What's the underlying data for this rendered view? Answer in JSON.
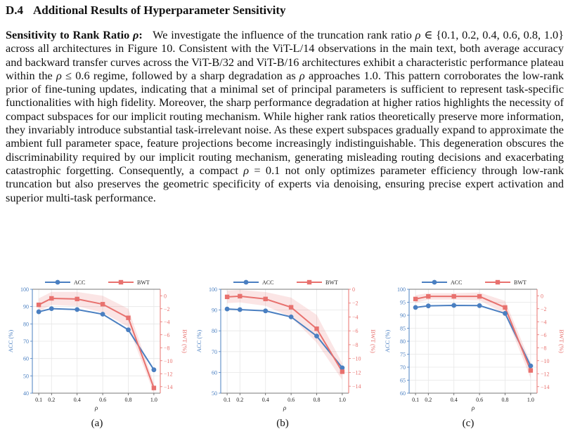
{
  "section": {
    "number": "D.4",
    "title": "Additional Results of Hyperparameter Sensitivity"
  },
  "paragraph": {
    "lead": "Sensitivity to Rank Ratio",
    "lead_symbol": "ρ",
    "t1": "We investigate the influence of the truncation rank ratio ",
    "rho": "ρ",
    "t2": " ∈ {0.1, 0.2, 0.4, 0.6, 0.8, 1.0} across all architectures in Figure 10. Consistent with the ViT-L/14 observations in the main text, both average accuracy and backward transfer curves across the ViT-B/32 and ViT-B/16 architectures exhibit a characteristic performance plateau within the ",
    "t3": " ≤ 0.6 regime, followed by a sharp degradation as ",
    "t4": " approaches 1.0. This pattern corroborates the low-rank prior of fine-tuning updates, indicating that a minimal set of principal parameters is sufficient to represent task-specific functionalities with high fidelity. Moreover, the sharp performance degradation at higher ratios highlights the necessity of compact subspaces for our implicit routing mechanism. While higher rank ratios theoretically preserve more information, they invariably introduce substantial task-irrelevant noise. As these expert subspaces gradually expand to approximate the ambient full parameter space, feature projections become increasingly indistinguishable. This degeneration obscures the discriminability required by our implicit routing mechanism, generating misleading routing decisions and exacerbating catastrophic forgetting. Consequently, a compact ",
    "t5": " = 0.1 not only optimizes parameter efficiency through low-rank truncation but also preserves the geometric specificity of experts via denoising, ensuring precise expert activation and superior multi-task performance."
  },
  "chart_data": [
    {
      "type": "line",
      "caption": "(a)",
      "x": [
        0.1,
        0.2,
        0.4,
        0.6,
        0.8,
        1.0
      ],
      "xlabel": "ρ",
      "ylabel_left": "ACC (%)",
      "ylabel_right": "BWT (%)",
      "ylim_left": [
        40,
        100
      ],
      "ylim_right": [
        -15,
        1
      ],
      "yticks_left": [
        40,
        50,
        60,
        70,
        80,
        90,
        100
      ],
      "yticks_right": [
        0,
        -2,
        -4,
        -6,
        -8,
        -10,
        -12,
        -14
      ],
      "xticks": [
        "0.1",
        "0.2",
        "0.4",
        "0.6",
        "0.8",
        "1.0"
      ],
      "grid": true,
      "legend_position": "top",
      "series": [
        {
          "name": "ACC",
          "axis": "left",
          "color": "#4a7fc1",
          "marker": "circle",
          "values": [
            87.0,
            88.8,
            88.3,
            85.6,
            76.6,
            53.5
          ]
        },
        {
          "name": "BWT",
          "axis": "right",
          "color": "#e8716e",
          "marker": "square",
          "values": [
            -1.4,
            -0.4,
            -0.5,
            -1.3,
            -3.4,
            -14.2
          ],
          "band": [
            1.0,
            1.0,
            1.1,
            1.3,
            1.4,
            0.8
          ]
        }
      ]
    },
    {
      "type": "line",
      "caption": "(b)",
      "x": [
        0.1,
        0.2,
        0.4,
        0.6,
        0.8,
        1.0
      ],
      "xlabel": "ρ",
      "ylabel_left": "ACC (%)",
      "ylabel_right": "BWT (%)",
      "ylim_left": [
        50,
        100
      ],
      "ylim_right": [
        -15,
        0
      ],
      "yticks_left": [
        50,
        60,
        70,
        80,
        90,
        100
      ],
      "yticks_right": [
        0,
        -2,
        -4,
        -6,
        -8,
        -10,
        -12,
        -14
      ],
      "xticks": [
        "0.1",
        "0.2",
        "0.4",
        "0.6",
        "0.8",
        "1.0"
      ],
      "grid": true,
      "legend_position": "top",
      "series": [
        {
          "name": "ACC",
          "axis": "left",
          "color": "#4a7fc1",
          "marker": "circle",
          "values": [
            90.5,
            90.2,
            89.6,
            86.7,
            77.5,
            62.2
          ]
        },
        {
          "name": "BWT",
          "axis": "right",
          "color": "#e8716e",
          "marker": "square",
          "values": [
            -1.1,
            -1.0,
            -1.4,
            -2.6,
            -5.7,
            -11.9
          ],
          "band": [
            0.9,
            0.9,
            1.0,
            1.4,
            2.0,
            1.2
          ]
        }
      ]
    },
    {
      "type": "line",
      "caption": "(c)",
      "x": [
        0.1,
        0.2,
        0.4,
        0.6,
        0.8,
        1.0
      ],
      "xlabel": "ρ",
      "ylabel_left": "ACC (%)",
      "ylabel_right": "BWT (%)",
      "ylim_left": [
        60,
        100
      ],
      "ylim_right": [
        -15,
        1
      ],
      "yticks_left": [
        60,
        65,
        70,
        75,
        80,
        85,
        90,
        95,
        100
      ],
      "yticks_right": [
        0,
        -2,
        -4,
        -6,
        -8,
        -10,
        -12,
        -14
      ],
      "xticks": [
        "0.1",
        "0.2",
        "0.4",
        "0.6",
        "0.8",
        "1.0"
      ],
      "grid": true,
      "legend_position": "top",
      "series": [
        {
          "name": "ACC",
          "axis": "left",
          "color": "#4a7fc1",
          "marker": "circle",
          "values": [
            93.0,
            93.6,
            93.8,
            93.7,
            90.7,
            70.5
          ]
        },
        {
          "name": "BWT",
          "axis": "right",
          "color": "#e8716e",
          "marker": "square",
          "values": [
            -0.5,
            -0.1,
            -0.1,
            -0.1,
            -1.8,
            -11.5
          ],
          "band": [
            0.6,
            0.5,
            0.5,
            0.6,
            1.0,
            1.2
          ]
        }
      ]
    }
  ]
}
